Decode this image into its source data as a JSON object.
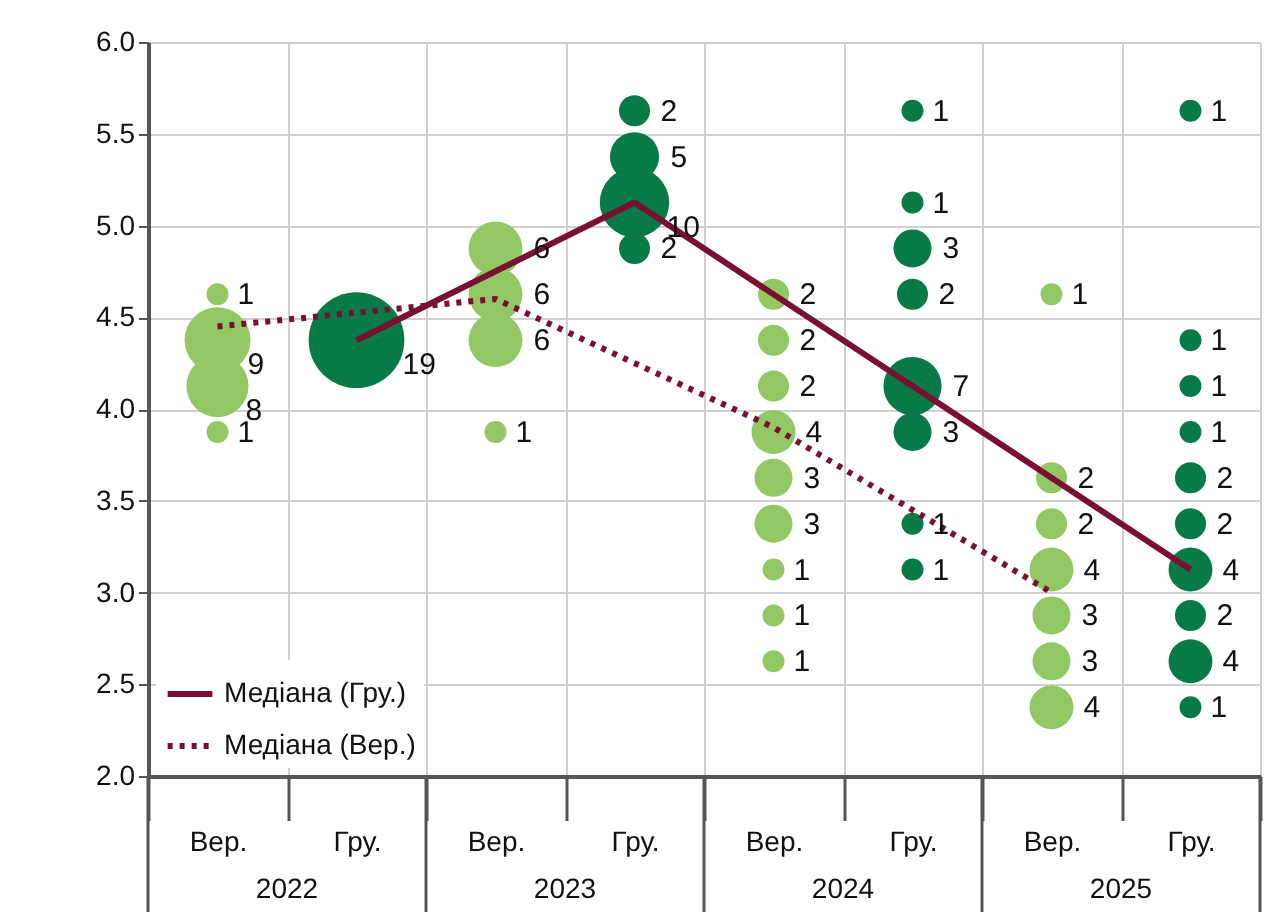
{
  "chart_data": {
    "type": "bubble",
    "categories": [
      "Вер.",
      "Гру.",
      "Вер.",
      "Гру.",
      "Вер.",
      "Гру.",
      "Вер.",
      "Гру."
    ],
    "annotations": [
      "2022",
      "2023",
      "2024",
      "2025"
    ],
    "ylim": [
      2.0,
      6.0
    ],
    "yticks": [
      {
        "value": 2,
        "label": "2.0"
      },
      {
        "value": 2.5,
        "label": "2.5"
      },
      {
        "value": 3,
        "label": "3.0"
      },
      {
        "value": 3.5,
        "label": "3.5"
      },
      {
        "value": 4,
        "label": "4.0"
      },
      {
        "value": 4.5,
        "label": "4.5"
      },
      {
        "value": 5,
        "label": "5.0"
      },
      {
        "value": 5.5,
        "label": "5.5"
      },
      {
        "value": 6,
        "label": "6.0"
      }
    ],
    "grid": true,
    "legend": "bottom left",
    "marker": "circle",
    "series": [
      {
        "type": "line",
        "name": "Медіана (Гру.)",
        "color": "#7a0f34",
        "line_style": "solid",
        "marker": "none",
        "values": [
          null,
          4.375,
          null,
          5.125,
          null,
          4.125,
          null,
          3.125
        ]
      },
      {
        "type": "line",
        "name": "Медіана (Вер.)",
        "color": "#7a0f34",
        "line_style": "dotted",
        "marker": "none",
        "values": [
          4.45,
          null,
          4.6,
          null,
          3.9,
          null,
          3.0,
          null
        ]
      },
      {
        "colors": [
          "#92c864",
          "#077a47",
          "#92c864",
          "#077a47",
          "#92c864",
          "#077a47",
          "#92c864",
          "#077a47"
        ],
        "values": [
          4.625,
          4.375,
          4.875,
          5.625,
          4.625,
          5.625,
          4.625,
          5.625
        ],
        "sizes": [
          1,
          19,
          6,
          2,
          2,
          1,
          1,
          1
        ],
        "value_labels": [
          "1",
          "19",
          "6",
          "2",
          "2",
          "1",
          "1",
          "1"
        ]
      },
      {
        "colors": [
          "#92c864",
          null,
          "#92c864",
          "#077a47",
          "#92c864",
          "#077a47",
          "#92c864",
          "#077a47"
        ],
        "values": [
          4.375,
          null,
          4.625,
          5.375,
          4.375,
          5.125,
          3.625,
          4.375
        ],
        "sizes": [
          9,
          null,
          6,
          5,
          2,
          1,
          2,
          1
        ],
        "value_labels": [
          "9",
          null,
          "6",
          "5",
          "2",
          "1",
          "2",
          "1"
        ]
      },
      {
        "colors": [
          "#92c864",
          null,
          "#92c864",
          "#077a47",
          "#92c864",
          "#077a47",
          "#92c864",
          "#077a47"
        ],
        "values": [
          4.125,
          null,
          4.375,
          5.125,
          4.125,
          4.875,
          3.375,
          4.125
        ],
        "sizes": [
          8,
          null,
          6,
          10,
          2,
          3,
          2,
          1
        ],
        "value_labels": [
          "8",
          null,
          "6",
          "10",
          "2",
          "3",
          "2",
          "1"
        ]
      },
      {
        "colors": [
          "#92c864",
          null,
          "#92c864",
          "#077a47",
          "#92c864",
          "#077a47",
          "#92c864",
          "#077a47"
        ],
        "values": [
          3.875,
          null,
          3.875,
          4.875,
          3.875,
          4.625,
          3.125,
          3.875
        ],
        "sizes": [
          1,
          null,
          1,
          2,
          4,
          2,
          4,
          1
        ],
        "value_labels": [
          "1",
          null,
          "1",
          "2",
          "4",
          "2",
          "4",
          "1"
        ]
      },
      {
        "colors": [
          null,
          null,
          null,
          null,
          "#92c864",
          "#077a47",
          "#92c864",
          "#077a47"
        ],
        "values": [
          null,
          null,
          null,
          null,
          3.625,
          4.125,
          2.875,
          3.625
        ],
        "sizes": [
          null,
          null,
          null,
          null,
          3,
          7,
          3,
          2
        ],
        "value_labels": [
          null,
          null,
          null,
          null,
          "3",
          "7",
          "3",
          "2"
        ]
      },
      {
        "colors": [
          null,
          null,
          null,
          null,
          "#92c864",
          "#077a47",
          "#92c864",
          "#077a47"
        ],
        "values": [
          null,
          null,
          null,
          null,
          3.375,
          3.875,
          2.625,
          3.375
        ],
        "sizes": [
          null,
          null,
          null,
          null,
          3,
          3,
          3,
          2
        ],
        "value_labels": [
          null,
          null,
          null,
          null,
          "3",
          "3",
          "3",
          "2"
        ]
      },
      {
        "colors": [
          null,
          null,
          null,
          null,
          "#92c864",
          "#077a47",
          "#92c864",
          "#077a47"
        ],
        "values": [
          null,
          null,
          null,
          null,
          3.125,
          3.375,
          2.375,
          3.125
        ],
        "sizes": [
          null,
          null,
          null,
          null,
          1,
          1,
          4,
          4
        ],
        "value_labels": [
          null,
          null,
          null,
          null,
          "1",
          "1",
          "4",
          "4"
        ]
      },
      {
        "colors": [
          null,
          null,
          null,
          null,
          "#92c864",
          "#077a47",
          null,
          "#077a47"
        ],
        "values": [
          null,
          null,
          null,
          null,
          2.875,
          3.125,
          null,
          2.875
        ],
        "sizes": [
          null,
          null,
          null,
          null,
          1,
          1,
          null,
          2
        ],
        "value_labels": [
          null,
          null,
          null,
          null,
          "1",
          "1",
          null,
          "2"
        ]
      },
      {
        "colors": [
          null,
          null,
          null,
          null,
          "#92c864",
          null,
          null,
          "#077a47"
        ],
        "values": [
          null,
          null,
          null,
          null,
          2.625,
          null,
          null,
          2.625
        ],
        "sizes": [
          null,
          null,
          null,
          null,
          1,
          null,
          null,
          4
        ],
        "value_labels": [
          null,
          null,
          null,
          null,
          "1",
          null,
          null,
          "4"
        ]
      },
      {
        "colors": [
          null,
          null,
          null,
          null,
          null,
          null,
          null,
          "#077a47"
        ],
        "values": [
          null,
          null,
          null,
          null,
          null,
          null,
          null,
          2.375
        ],
        "sizes": [
          null,
          null,
          null,
          null,
          null,
          null,
          null,
          1
        ],
        "value_labels": [
          null,
          null,
          null,
          null,
          null,
          null,
          null,
          "1"
        ]
      }
    ]
  }
}
